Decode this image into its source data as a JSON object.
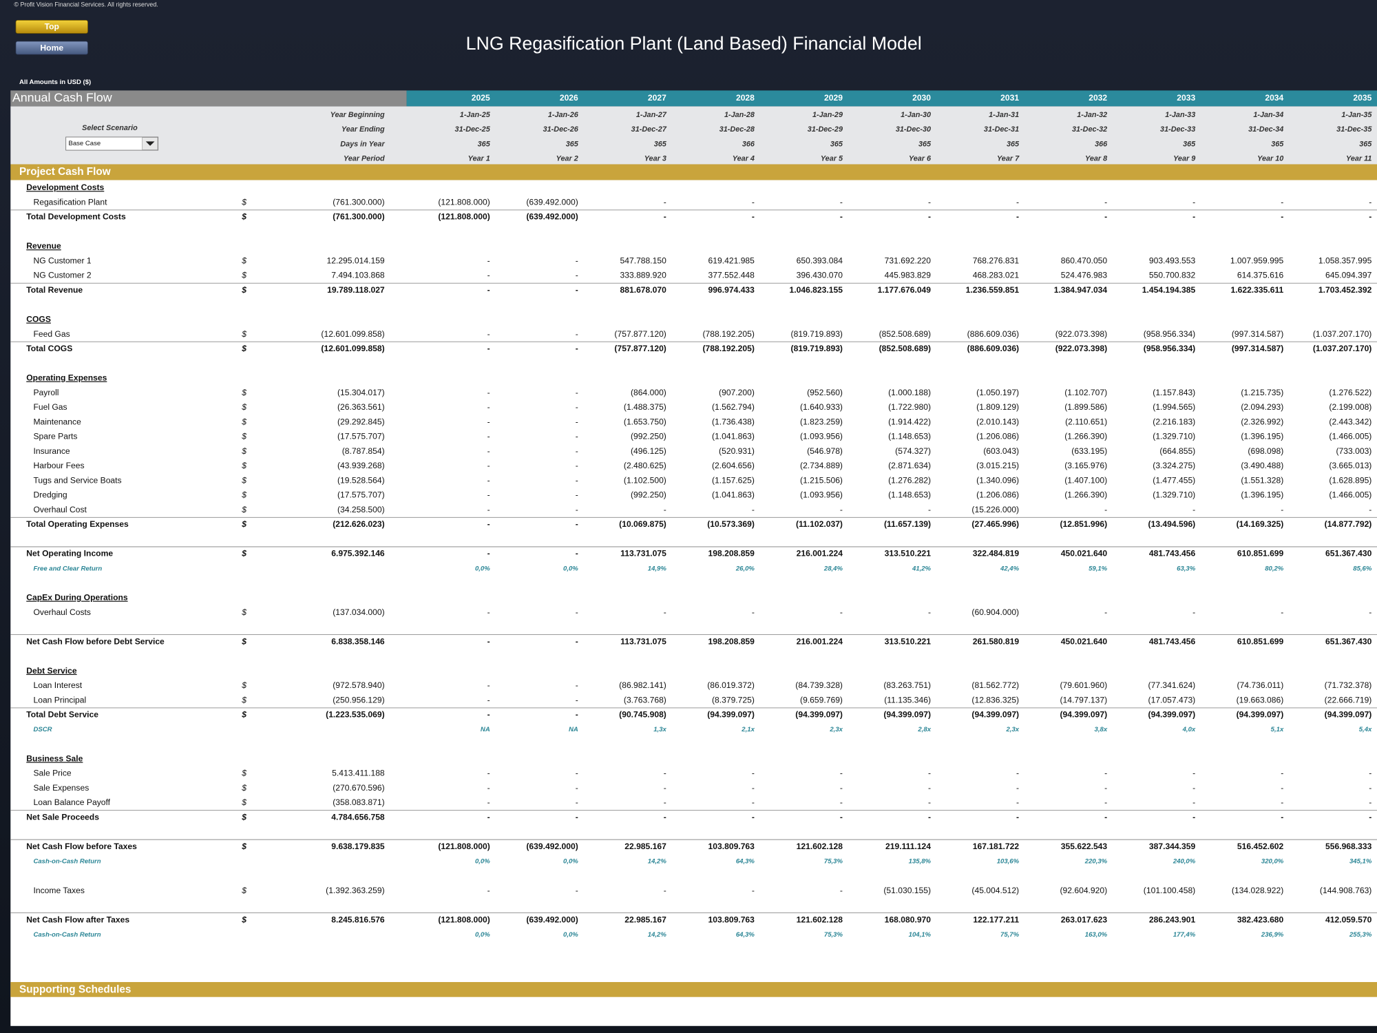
{
  "copyright": "© Profit Vision Financial Services. All rights reserved.",
  "buttons": [
    "Top",
    "Home"
  ],
  "title": "LNG Regasification Plant (Land Based) Financial Model",
  "amounts_note": "All Amounts in  USD ($)",
  "sheet_title": "Annual Cash Flow",
  "years": [
    "2025",
    "2026",
    "2027",
    "2028",
    "2029",
    "2030",
    "2031",
    "2032",
    "2033",
    "2034",
    "2035"
  ],
  "scenario_label": "Select Scenario",
  "scenario_value": "Base Case",
  "header_rows": [
    {
      "label": "Year Beginning",
      "values": [
        "1-Jan-25",
        "1-Jan-26",
        "1-Jan-27",
        "1-Jan-28",
        "1-Jan-29",
        "1-Jan-30",
        "1-Jan-31",
        "1-Jan-32",
        "1-Jan-33",
        "1-Jan-34",
        "1-Jan-35"
      ]
    },
    {
      "label": "Year Ending",
      "values": [
        "31-Dec-25",
        "31-Dec-26",
        "31-Dec-27",
        "31-Dec-28",
        "31-Dec-29",
        "31-Dec-30",
        "31-Dec-31",
        "31-Dec-32",
        "31-Dec-33",
        "31-Dec-34",
        "31-Dec-35"
      ]
    },
    {
      "label": "Days in Year",
      "values": [
        "365",
        "365",
        "365",
        "366",
        "365",
        "365",
        "365",
        "366",
        "365",
        "365",
        "365"
      ]
    },
    {
      "label": "Year Period",
      "values": [
        "Year 1",
        "Year 2",
        "Year 3",
        "Year 4",
        "Year 5",
        "Year 6",
        "Year 7",
        "Year 8",
        "Year 9",
        "Year 10",
        "Year 11"
      ]
    }
  ],
  "section_title": "Project Cash Flow",
  "rows": [
    {
      "kind": "heading",
      "label": "Development Costs"
    },
    {
      "kind": "item",
      "label": "Regasification Plant",
      "unit": "$",
      "total": "(761.300.000)",
      "values": [
        "(121.808.000)",
        "(639.492.000)",
        "-",
        "-",
        "-",
        "-",
        "-",
        "-",
        "-",
        "-",
        "-"
      ]
    },
    {
      "kind": "total",
      "label": "Total Development Costs",
      "unit": "$",
      "total": "(761.300.000)",
      "values": [
        "(121.808.000)",
        "(639.492.000)",
        "-",
        "-",
        "-",
        "-",
        "-",
        "-",
        "-",
        "-",
        "-"
      ]
    },
    {
      "kind": "heading",
      "label": "Revenue"
    },
    {
      "kind": "item",
      "label": "NG Customer 1",
      "unit": "$",
      "total": "12.295.014.159",
      "values": [
        "-",
        "-",
        "547.788.150",
        "619.421.985",
        "650.393.084",
        "731.692.220",
        "768.276.831",
        "860.470.050",
        "903.493.553",
        "1.007.959.995",
        "1.058.357.995"
      ]
    },
    {
      "kind": "item",
      "label": "NG Customer 2",
      "unit": "$",
      "total": "7.494.103.868",
      "values": [
        "-",
        "-",
        "333.889.920",
        "377.552.448",
        "396.430.070",
        "445.983.829",
        "468.283.021",
        "524.476.983",
        "550.700.832",
        "614.375.616",
        "645.094.397"
      ]
    },
    {
      "kind": "total",
      "label": "Total Revenue",
      "unit": "$",
      "total": "19.789.118.027",
      "values": [
        "-",
        "-",
        "881.678.070",
        "996.974.433",
        "1.046.823.155",
        "1.177.676.049",
        "1.236.559.851",
        "1.384.947.034",
        "1.454.194.385",
        "1.622.335.611",
        "1.703.452.392"
      ]
    },
    {
      "kind": "heading",
      "label": "COGS"
    },
    {
      "kind": "item",
      "label": "Feed Gas",
      "unit": "$",
      "total": "(12.601.099.858)",
      "values": [
        "-",
        "-",
        "(757.877.120)",
        "(788.192.205)",
        "(819.719.893)",
        "(852.508.689)",
        "(886.609.036)",
        "(922.073.398)",
        "(958.956.334)",
        "(997.314.587)",
        "(1.037.207.170)"
      ]
    },
    {
      "kind": "total",
      "label": "Total COGS",
      "unit": "$",
      "total": "(12.601.099.858)",
      "values": [
        "-",
        "-",
        "(757.877.120)",
        "(788.192.205)",
        "(819.719.893)",
        "(852.508.689)",
        "(886.609.036)",
        "(922.073.398)",
        "(958.956.334)",
        "(997.314.587)",
        "(1.037.207.170)"
      ]
    },
    {
      "kind": "heading",
      "label": "Operating Expenses"
    },
    {
      "kind": "item",
      "label": "Payroll",
      "unit": "$",
      "total": "(15.304.017)",
      "values": [
        "-",
        "-",
        "(864.000)",
        "(907.200)",
        "(952.560)",
        "(1.000.188)",
        "(1.050.197)",
        "(1.102.707)",
        "(1.157.843)",
        "(1.215.735)",
        "(1.276.522)"
      ]
    },
    {
      "kind": "item",
      "label": "Fuel Gas",
      "unit": "$",
      "total": "(26.363.561)",
      "values": [
        "-",
        "-",
        "(1.488.375)",
        "(1.562.794)",
        "(1.640.933)",
        "(1.722.980)",
        "(1.809.129)",
        "(1.899.586)",
        "(1.994.565)",
        "(2.094.293)",
        "(2.199.008)"
      ]
    },
    {
      "kind": "item",
      "label": "Maintenance",
      "unit": "$",
      "total": "(29.292.845)",
      "values": [
        "-",
        "-",
        "(1.653.750)",
        "(1.736.438)",
        "(1.823.259)",
        "(1.914.422)",
        "(2.010.143)",
        "(2.110.651)",
        "(2.216.183)",
        "(2.326.992)",
        "(2.443.342)"
      ]
    },
    {
      "kind": "item",
      "label": "Spare Parts",
      "unit": "$",
      "total": "(17.575.707)",
      "values": [
        "-",
        "-",
        "(992.250)",
        "(1.041.863)",
        "(1.093.956)",
        "(1.148.653)",
        "(1.206.086)",
        "(1.266.390)",
        "(1.329.710)",
        "(1.396.195)",
        "(1.466.005)"
      ]
    },
    {
      "kind": "item",
      "label": "Insurance",
      "unit": "$",
      "total": "(8.787.854)",
      "values": [
        "-",
        "-",
        "(496.125)",
        "(520.931)",
        "(546.978)",
        "(574.327)",
        "(603.043)",
        "(633.195)",
        "(664.855)",
        "(698.098)",
        "(733.003)"
      ]
    },
    {
      "kind": "item",
      "label": "Harbour Fees",
      "unit": "$",
      "total": "(43.939.268)",
      "values": [
        "-",
        "-",
        "(2.480.625)",
        "(2.604.656)",
        "(2.734.889)",
        "(2.871.634)",
        "(3.015.215)",
        "(3.165.976)",
        "(3.324.275)",
        "(3.490.488)",
        "(3.665.013)"
      ]
    },
    {
      "kind": "item",
      "label": "Tugs and Service Boats",
      "unit": "$",
      "total": "(19.528.564)",
      "values": [
        "-",
        "-",
        "(1.102.500)",
        "(1.157.625)",
        "(1.215.506)",
        "(1.276.282)",
        "(1.340.096)",
        "(1.407.100)",
        "(1.477.455)",
        "(1.551.328)",
        "(1.628.895)"
      ]
    },
    {
      "kind": "item",
      "label": "Dredging",
      "unit": "$",
      "total": "(17.575.707)",
      "values": [
        "-",
        "-",
        "(992.250)",
        "(1.041.863)",
        "(1.093.956)",
        "(1.148.653)",
        "(1.206.086)",
        "(1.266.390)",
        "(1.329.710)",
        "(1.396.195)",
        "(1.466.005)"
      ]
    },
    {
      "kind": "item",
      "label": "Overhaul Cost",
      "unit": "$",
      "total": "(34.258.500)",
      "values": [
        "-",
        "-",
        "-",
        "-",
        "-",
        "-",
        "(15.226.000)",
        "-",
        "-",
        "-",
        "-"
      ]
    },
    {
      "kind": "total",
      "label": "Total Operating Expenses",
      "unit": "$",
      "total": "(212.626.023)",
      "values": [
        "-",
        "-",
        "(10.069.875)",
        "(10.573.369)",
        "(11.102.037)",
        "(11.657.139)",
        "(27.465.996)",
        "(12.851.996)",
        "(13.494.596)",
        "(14.169.325)",
        "(14.877.792)"
      ]
    },
    {
      "kind": "net",
      "label": "Net Operating Income",
      "unit": "$",
      "total": "6.975.392.146",
      "values": [
        "-",
        "-",
        "113.731.075",
        "198.208.859",
        "216.001.224",
        "313.510.221",
        "322.484.819",
        "450.021.640",
        "481.743.456",
        "610.851.699",
        "651.367.430"
      ]
    },
    {
      "kind": "ratio",
      "label": "Free and Clear Return",
      "values": [
        "0,0%",
        "0,0%",
        "14,9%",
        "26,0%",
        "28,4%",
        "41,2%",
        "42,4%",
        "59,1%",
        "63,3%",
        "80,2%",
        "85,6%"
      ]
    },
    {
      "kind": "heading",
      "label": "CapEx During Operations"
    },
    {
      "kind": "item",
      "label": "Overhaul Costs",
      "unit": "$",
      "total": "(137.034.000)",
      "values": [
        "-",
        "-",
        "-",
        "-",
        "-",
        "-",
        "(60.904.000)",
        "-",
        "-",
        "-",
        "-"
      ]
    },
    {
      "kind": "net",
      "label": "Net Cash Flow before Debt Service",
      "unit": "$",
      "total": "6.838.358.146",
      "values": [
        "-",
        "-",
        "113.731.075",
        "198.208.859",
        "216.001.224",
        "313.510.221",
        "261.580.819",
        "450.021.640",
        "481.743.456",
        "610.851.699",
        "651.367.430"
      ]
    },
    {
      "kind": "heading",
      "label": "Debt Service"
    },
    {
      "kind": "item",
      "label": "Loan Interest",
      "unit": "$",
      "total": "(972.578.940)",
      "values": [
        "-",
        "-",
        "(86.982.141)",
        "(86.019.372)",
        "(84.739.328)",
        "(83.263.751)",
        "(81.562.772)",
        "(79.601.960)",
        "(77.341.624)",
        "(74.736.011)",
        "(71.732.378)"
      ]
    },
    {
      "kind": "item",
      "label": "Loan Principal",
      "unit": "$",
      "total": "(250.956.129)",
      "values": [
        "-",
        "-",
        "(3.763.768)",
        "(8.379.725)",
        "(9.659.769)",
        "(11.135.346)",
        "(12.836.325)",
        "(14.797.137)",
        "(17.057.473)",
        "(19.663.086)",
        "(22.666.719)"
      ]
    },
    {
      "kind": "total",
      "label": "Total Debt Service",
      "unit": "$",
      "total": "(1.223.535.069)",
      "values": [
        "-",
        "-",
        "(90.745.908)",
        "(94.399.097)",
        "(94.399.097)",
        "(94.399.097)",
        "(94.399.097)",
        "(94.399.097)",
        "(94.399.097)",
        "(94.399.097)",
        "(94.399.097)"
      ]
    },
    {
      "kind": "ratio",
      "label": "DSCR",
      "values": [
        "NA",
        "NA",
        "1,3x",
        "2,1x",
        "2,3x",
        "2,8x",
        "2,3x",
        "3,8x",
        "4,0x",
        "5,1x",
        "5,4x"
      ]
    },
    {
      "kind": "heading",
      "label": "Business Sale"
    },
    {
      "kind": "item",
      "label": "Sale Price",
      "unit": "$",
      "total": "5.413.411.188",
      "values": [
        "-",
        "-",
        "-",
        "-",
        "-",
        "-",
        "-",
        "-",
        "-",
        "-",
        "-"
      ]
    },
    {
      "kind": "item",
      "label": "Sale Expenses",
      "unit": "$",
      "total": "(270.670.596)",
      "values": [
        "-",
        "-",
        "-",
        "-",
        "-",
        "-",
        "-",
        "-",
        "-",
        "-",
        "-"
      ]
    },
    {
      "kind": "item",
      "label": "Loan Balance Payoff",
      "unit": "$",
      "total": "(358.083.871)",
      "values": [
        "-",
        "-",
        "-",
        "-",
        "-",
        "-",
        "-",
        "-",
        "-",
        "-",
        "-"
      ]
    },
    {
      "kind": "total",
      "label": "Net Sale Proceeds",
      "unit": "$",
      "total": "4.784.656.758",
      "values": [
        "-",
        "-",
        "-",
        "-",
        "-",
        "-",
        "-",
        "-",
        "-",
        "-",
        "-"
      ]
    },
    {
      "kind": "net",
      "label": "Net Cash Flow before Taxes",
      "unit": "$",
      "total": "9.638.179.835",
      "values": [
        "(121.808.000)",
        "(639.492.000)",
        "22.985.167",
        "103.809.763",
        "121.602.128",
        "219.111.124",
        "167.181.722",
        "355.622.543",
        "387.344.359",
        "516.452.602",
        "556.968.333"
      ]
    },
    {
      "kind": "ratio",
      "label": "Cash-on-Cash Return",
      "values": [
        "0,0%",
        "0,0%",
        "14,2%",
        "64,3%",
        "75,3%",
        "135,8%",
        "103,6%",
        "220,3%",
        "240,0%",
        "320,0%",
        "345,1%"
      ]
    },
    {
      "kind": "item",
      "label": "Income Taxes",
      "unit": "$",
      "total": "(1.392.363.259)",
      "values": [
        "-",
        "-",
        "-",
        "-",
        "-",
        "(51.030.155)",
        "(45.004.512)",
        "(92.604.920)",
        "(101.100.458)",
        "(134.028.922)",
        "(144.908.763)"
      ]
    },
    {
      "kind": "net",
      "label": "Net Cash Flow after Taxes",
      "unit": "$",
      "total": "8.245.816.576",
      "values": [
        "(121.808.000)",
        "(639.492.000)",
        "22.985.167",
        "103.809.763",
        "121.602.128",
        "168.080.970",
        "122.177.211",
        "263.017.623",
        "286.243.901",
        "382.423.680",
        "412.059.570"
      ]
    },
    {
      "kind": "ratio",
      "label": "Cash-on-Cash Return",
      "values": [
        "0,0%",
        "0,0%",
        "14,2%",
        "64,3%",
        "75,3%",
        "104,1%",
        "75,7%",
        "163,0%",
        "177,4%",
        "236,9%",
        "255,3%"
      ]
    }
  ],
  "footer_section": "Supporting Schedules"
}
